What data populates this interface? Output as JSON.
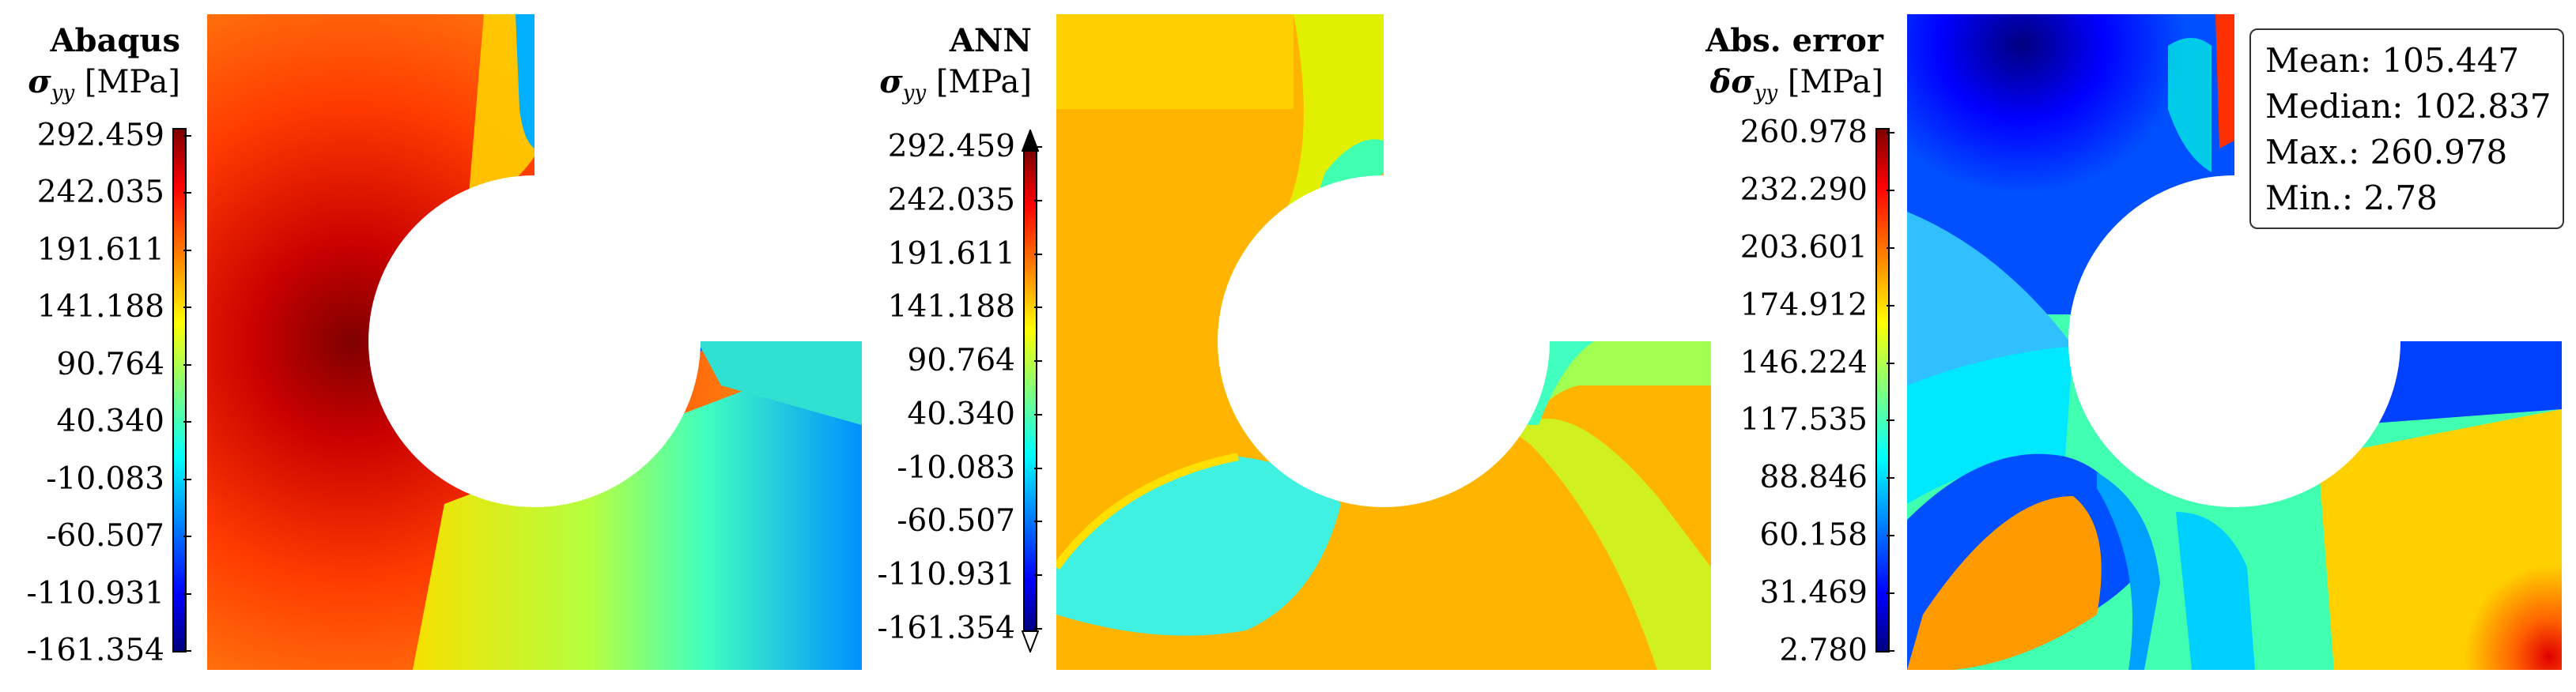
{
  "panels": [
    {
      "title": "Abaqus",
      "quantity": "σ",
      "subscript": "yy",
      "unit": "[MPa]",
      "ticks": [
        "292.459",
        "242.035",
        "191.611",
        "141.188",
        "90.764",
        "40.340",
        "-10.083",
        "-60.507",
        "-110.931",
        "-161.354"
      ]
    },
    {
      "title": "ANN",
      "quantity": "σ",
      "subscript": "yy",
      "unit": "[MPa]",
      "ticks": [
        "292.459",
        "242.035",
        "191.611",
        "141.188",
        "90.764",
        "40.340",
        "-10.083",
        "-60.507",
        "-110.931",
        "-161.354"
      ]
    },
    {
      "title": "Abs. error",
      "quantity": "δσ",
      "subscript": "yy",
      "unit": "[MPa]",
      "ticks": [
        "260.978",
        "232.290",
        "203.601",
        "174.912",
        "146.224",
        "117.535",
        "88.846",
        "60.158",
        "31.469",
        "2.780"
      ]
    }
  ],
  "stats": {
    "mean": "Mean: 105.447",
    "median": "Median: 102.837",
    "max": "Max.: 260.978",
    "min": "Min.: 2.78"
  },
  "colormap": "jet"
}
